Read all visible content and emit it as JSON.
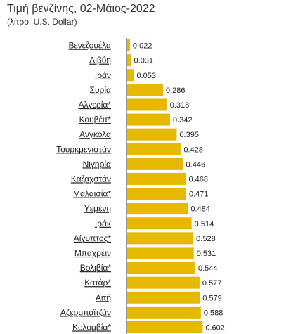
{
  "chart_data": {
    "type": "bar",
    "orientation": "horizontal",
    "title": "Τιμή βενζίνης, 02-Μάιος-2022",
    "subtitle": "(λίτρο, U.S. Dollar)",
    "categories": [
      "Βενεζουέλα",
      "Λιβύη",
      "Ιράν",
      "Συρία",
      "Αλγερία*",
      "Κουβέιτ*",
      "Ανγκόλα",
      "Τουρκμενιστάν",
      "Νιγηρία",
      "Καζαχστάν",
      "Μαλαισία*",
      "Υεμένη",
      "Ιράκ",
      "Αίγυπτος*",
      "Μπαχρέιν",
      "Βολιβία*",
      "Κατάρ*",
      "Αϊτή",
      "Αζερμπαϊτζάν",
      "Κολομβία*"
    ],
    "values": [
      0.022,
      0.031,
      0.053,
      0.286,
      0.318,
      0.342,
      0.395,
      0.428,
      0.446,
      0.468,
      0.471,
      0.484,
      0.514,
      0.528,
      0.531,
      0.544,
      0.577,
      0.579,
      0.588,
      0.602
    ],
    "value_labels": [
      "0.022",
      "0.031",
      "0.053",
      "0.286",
      "0.318",
      "0.342",
      "0.395",
      "0.428",
      "0.446",
      "0.468",
      "0.471",
      "0.484",
      "0.514",
      "0.528",
      "0.531",
      "0.544",
      "0.577",
      "0.579",
      "0.588",
      "0.602"
    ],
    "xlim": [
      0,
      0.6
    ],
    "grid": false,
    "legend": "none",
    "bar_color": "#e6b800",
    "axis_color": "#333333",
    "label_color": "#222222"
  }
}
